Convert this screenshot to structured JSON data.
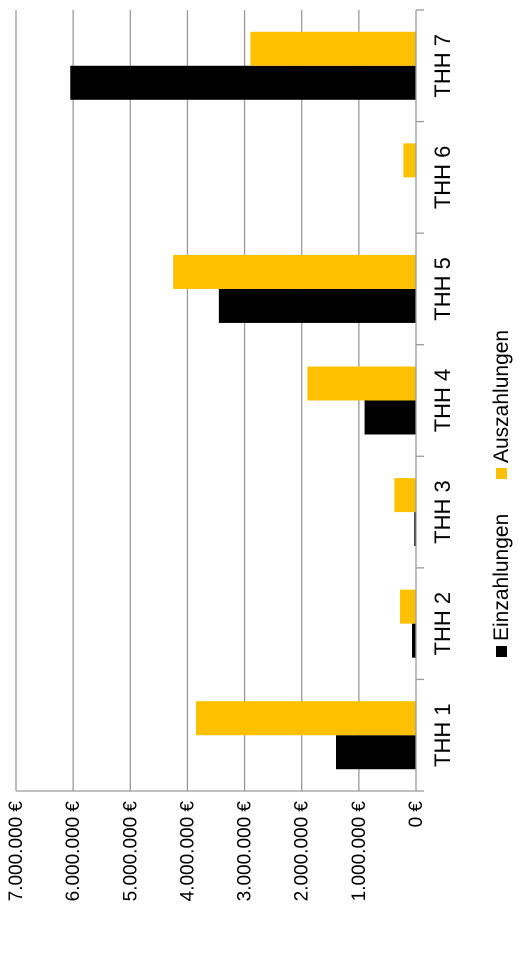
{
  "chart_data": {
    "type": "bar",
    "orientation": "vertical-bars-rotated-90",
    "categories": [
      "THH 1",
      "THH 2",
      "THH 3",
      "THH 4",
      "THH 5",
      "THH 6",
      "THH 7"
    ],
    "series": [
      {
        "name": "Einzahlungen",
        "color": "#000000",
        "values": [
          1400000,
          70000,
          30000,
          900000,
          3450000,
          0,
          6050000
        ]
      },
      {
        "name": "Auszahlungen",
        "color": "#FFC000",
        "values": [
          3850000,
          280000,
          380000,
          1900000,
          4250000,
          220000,
          2900000
        ]
      }
    ],
    "y_ticks": [
      {
        "value": 0,
        "label": "0 €"
      },
      {
        "value": 1000000,
        "label": "1.000.000 €"
      },
      {
        "value": 2000000,
        "label": "2.000.000 €"
      },
      {
        "value": 3000000,
        "label": "3.000.000 €"
      },
      {
        "value": 4000000,
        "label": "4.000.000 €"
      },
      {
        "value": 5000000,
        "label": "5.000.000 €"
      },
      {
        "value": 6000000,
        "label": "6.000.000 €"
      },
      {
        "value": 7000000,
        "label": "7.000.000 €"
      }
    ],
    "ylim": [
      0,
      7000000
    ],
    "grid": true,
    "legend_position": "bottom",
    "title": "",
    "xlabel": "",
    "ylabel": ""
  }
}
